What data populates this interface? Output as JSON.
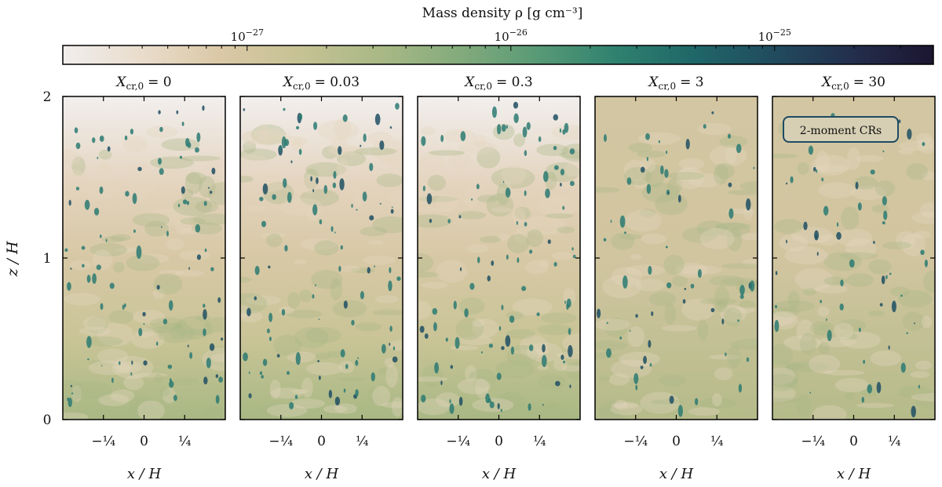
{
  "colorbar": {
    "label": "Mass density ρ [g cm⁻³]",
    "scale": "log",
    "range": [
      2e-28,
      4e-25
    ],
    "ticks": [
      {
        "value": 1e-27,
        "base": "10",
        "exp": "−27"
      },
      {
        "value": 1e-26,
        "base": "10",
        "exp": "−26"
      },
      {
        "value": 1e-25,
        "base": "10",
        "exp": "−25"
      }
    ],
    "colors": [
      "#f1eeed",
      "#e9dccb",
      "#dac8a6",
      "#c6c294",
      "#a9b986",
      "#84ab7c",
      "#589a76",
      "#2f816f",
      "#1f6668",
      "#214b5e",
      "#232e4c",
      "#1b1530"
    ]
  },
  "chart_data": {
    "type": "heatmap",
    "quantity": "mass density",
    "panels": [
      {
        "title_sym": "X",
        "title_sub": "cr,0",
        "title_val": "= 0",
        "Xcr0": 0
      },
      {
        "title_sym": "X",
        "title_sub": "cr,0",
        "title_val": "= 0.03",
        "Xcr0": 0.03
      },
      {
        "title_sym": "X",
        "title_sub": "cr,0",
        "title_val": "= 0.3",
        "Xcr0": 0.3
      },
      {
        "title_sym": "X",
        "title_sub": "cr,0",
        "title_val": "= 3",
        "Xcr0": 3
      },
      {
        "title_sym": "X",
        "title_sub": "cr,0",
        "title_val": "= 30",
        "Xcr0": 30
      }
    ],
    "xlabel": "x / H",
    "ylabel": "z / H",
    "xlim": [
      -0.5,
      0.5
    ],
    "ylim": [
      0,
      2
    ],
    "xticks": [
      -0.25,
      0,
      0.25
    ],
    "xtick_labels": [
      "−¼",
      "0",
      "¼"
    ],
    "yticks": [
      0,
      1,
      2
    ],
    "ytick_labels": [
      "0",
      "1",
      "2"
    ],
    "annotation": "2-moment CRs"
  }
}
